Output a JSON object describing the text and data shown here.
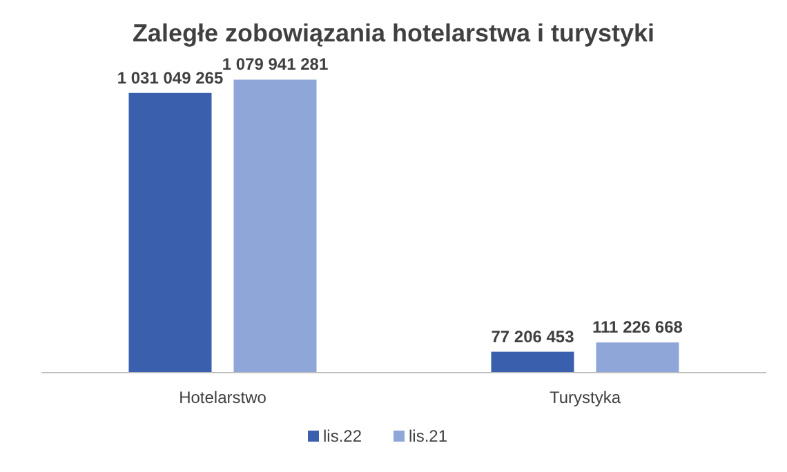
{
  "chart_data": {
    "type": "bar",
    "title": "Zaległe zobowiązania hotelarstwa i turystyki",
    "categories": [
      "Hotelarstwo",
      "Turystyka"
    ],
    "series": [
      {
        "name": "lis.22",
        "color": "#3a5fad",
        "values": [
          1031049265,
          77206453
        ],
        "value_labels": [
          "1 031 049 265",
          "77 206 453"
        ]
      },
      {
        "name": "lis.21",
        "color": "#8fa6d8",
        "values": [
          1079941281,
          111226668
        ],
        "value_labels": [
          "1 079 941 281",
          "111 226 668"
        ]
      }
    ],
    "legend": "bottom",
    "grid": false
  }
}
